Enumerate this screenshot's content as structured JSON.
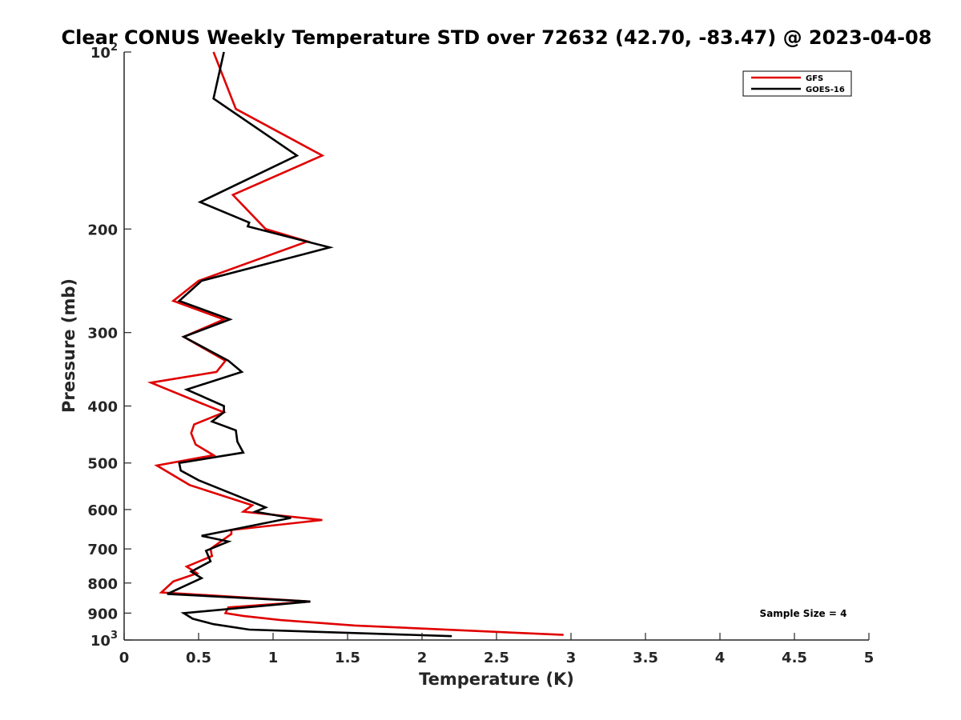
{
  "chart_data": {
    "type": "line",
    "title": "Clear CONUS Weekly Temperature STD over 72632 (42.70, -83.47) @ 2023-04-08",
    "xlabel": "Temperature (K)",
    "ylabel": "Pressure (mb)",
    "xlim": [
      0,
      5
    ],
    "ylim": [
      100,
      1000
    ],
    "y_scale": "log",
    "y_reversed": true,
    "x_ticks": [
      "0",
      "0.5",
      "1",
      "1.5",
      "2",
      "2.5",
      "3",
      "3.5",
      "4",
      "4.5",
      "5"
    ],
    "y_ticks": [
      {
        "value": 100,
        "base": "10",
        "exp": "2"
      },
      {
        "value": 200,
        "label": "200"
      },
      {
        "value": 300,
        "label": "300"
      },
      {
        "value": 400,
        "label": "400"
      },
      {
        "value": 500,
        "label": "500"
      },
      {
        "value": 600,
        "label": "600"
      },
      {
        "value": 700,
        "label": "700"
      },
      {
        "value": 800,
        "label": "800"
      },
      {
        "value": 900,
        "label": "900"
      },
      {
        "value": 1000,
        "base": "10",
        "exp": "3"
      }
    ],
    "grid": false,
    "legend_position": "top-right",
    "annotation": "Sample Size = 4",
    "series": [
      {
        "name": "GFS",
        "color": "#e00000",
        "points": [
          [
            0.6,
            100
          ],
          [
            0.75,
            125
          ],
          [
            1.33,
            150
          ],
          [
            0.73,
            175
          ],
          [
            0.95,
            200
          ],
          [
            1.23,
            210
          ],
          [
            0.5,
            245
          ],
          [
            0.33,
            265
          ],
          [
            0.67,
            285
          ],
          [
            0.4,
            305
          ],
          [
            0.68,
            335
          ],
          [
            0.62,
            350
          ],
          [
            0.18,
            365
          ],
          [
            0.51,
            395
          ],
          [
            0.67,
            410
          ],
          [
            0.47,
            430
          ],
          [
            0.45,
            445
          ],
          [
            0.48,
            465
          ],
          [
            0.6,
            485
          ],
          [
            0.22,
            505
          ],
          [
            0.44,
            545
          ],
          [
            0.86,
            590
          ],
          [
            0.8,
            605
          ],
          [
            1.33,
            625
          ],
          [
            0.72,
            650
          ],
          [
            0.72,
            660
          ],
          [
            0.58,
            700
          ],
          [
            0.59,
            720
          ],
          [
            0.42,
            750
          ],
          [
            0.49,
            770
          ],
          [
            0.33,
            795
          ],
          [
            0.25,
            830
          ],
          [
            1.25,
            860
          ],
          [
            0.7,
            880
          ],
          [
            0.68,
            900
          ],
          [
            0.8,
            910
          ],
          [
            1.05,
            925
          ],
          [
            1.55,
            945
          ],
          [
            2.95,
            980
          ]
        ]
      },
      {
        "name": "GOES-16",
        "color": "#000000",
        "points": [
          [
            0.67,
            100
          ],
          [
            0.6,
            120
          ],
          [
            1.16,
            150
          ],
          [
            0.51,
            180
          ],
          [
            0.84,
            195
          ],
          [
            0.83,
            198
          ],
          [
            1.38,
            215
          ],
          [
            0.52,
            245
          ],
          [
            0.37,
            265
          ],
          [
            0.71,
            285
          ],
          [
            0.4,
            305
          ],
          [
            0.7,
            335
          ],
          [
            0.79,
            350
          ],
          [
            0.42,
            375
          ],
          [
            0.67,
            400
          ],
          [
            0.67,
            410
          ],
          [
            0.59,
            425
          ],
          [
            0.75,
            440
          ],
          [
            0.76,
            460
          ],
          [
            0.8,
            480
          ],
          [
            0.37,
            500
          ],
          [
            0.38,
            515
          ],
          [
            0.5,
            535
          ],
          [
            0.77,
            570
          ],
          [
            0.95,
            595
          ],
          [
            0.88,
            605
          ],
          [
            1.12,
            620
          ],
          [
            0.52,
            665
          ],
          [
            0.7,
            680
          ],
          [
            0.55,
            705
          ],
          [
            0.58,
            735
          ],
          [
            0.45,
            765
          ],
          [
            0.52,
            785
          ],
          [
            0.29,
            835
          ],
          [
            1.25,
            860
          ],
          [
            0.4,
            900
          ],
          [
            0.46,
            920
          ],
          [
            0.6,
            940
          ],
          [
            0.84,
            960
          ],
          [
            2.2,
            985
          ]
        ]
      }
    ]
  }
}
